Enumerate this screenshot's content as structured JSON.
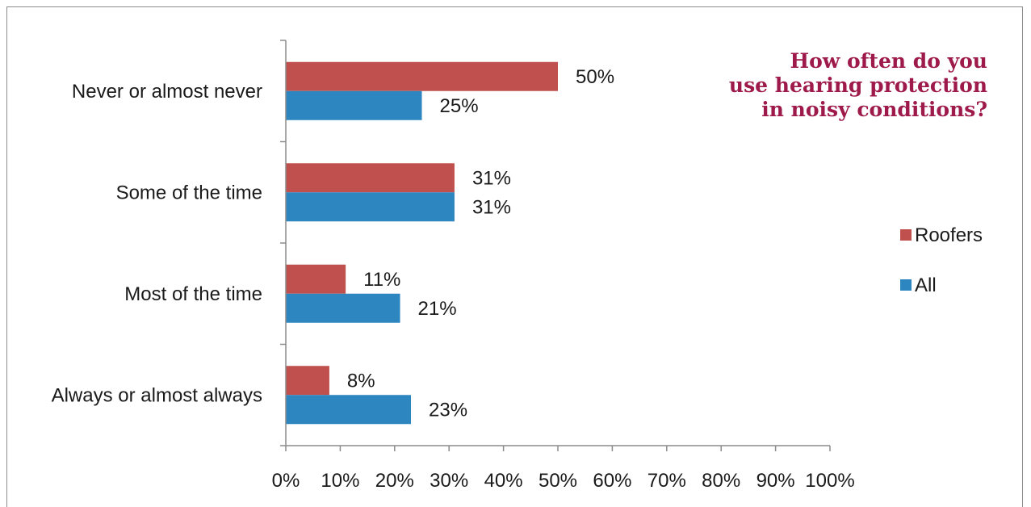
{
  "chart_data": {
    "type": "bar",
    "orientation": "horizontal",
    "title_lines": [
      "How often do you",
      "use hearing protection",
      "in noisy conditions?"
    ],
    "title_color": "#9e1a4a",
    "categories": [
      "Never or almost never",
      "Some of the time",
      "Most of the time",
      "Always or almost always"
    ],
    "series": [
      {
        "name": "Roofers",
        "color": "#c0504d",
        "values": [
          50,
          31,
          11,
          8
        ]
      },
      {
        "name": "All",
        "color": "#2e86c1",
        "values": [
          25,
          31,
          21,
          23
        ]
      }
    ],
    "data_labels": {
      "Roofers": [
        "50%",
        "31%",
        "11%",
        "8%"
      ],
      "All": [
        "25%",
        "31%",
        "21%",
        "23%"
      ]
    },
    "x_ticks": [
      "0%",
      "10%",
      "20%",
      "30%",
      "40%",
      "50%",
      "60%",
      "70%",
      "80%",
      "90%",
      "100%"
    ],
    "xlim": [
      0,
      100
    ],
    "grid": false,
    "legend_position": "right"
  }
}
